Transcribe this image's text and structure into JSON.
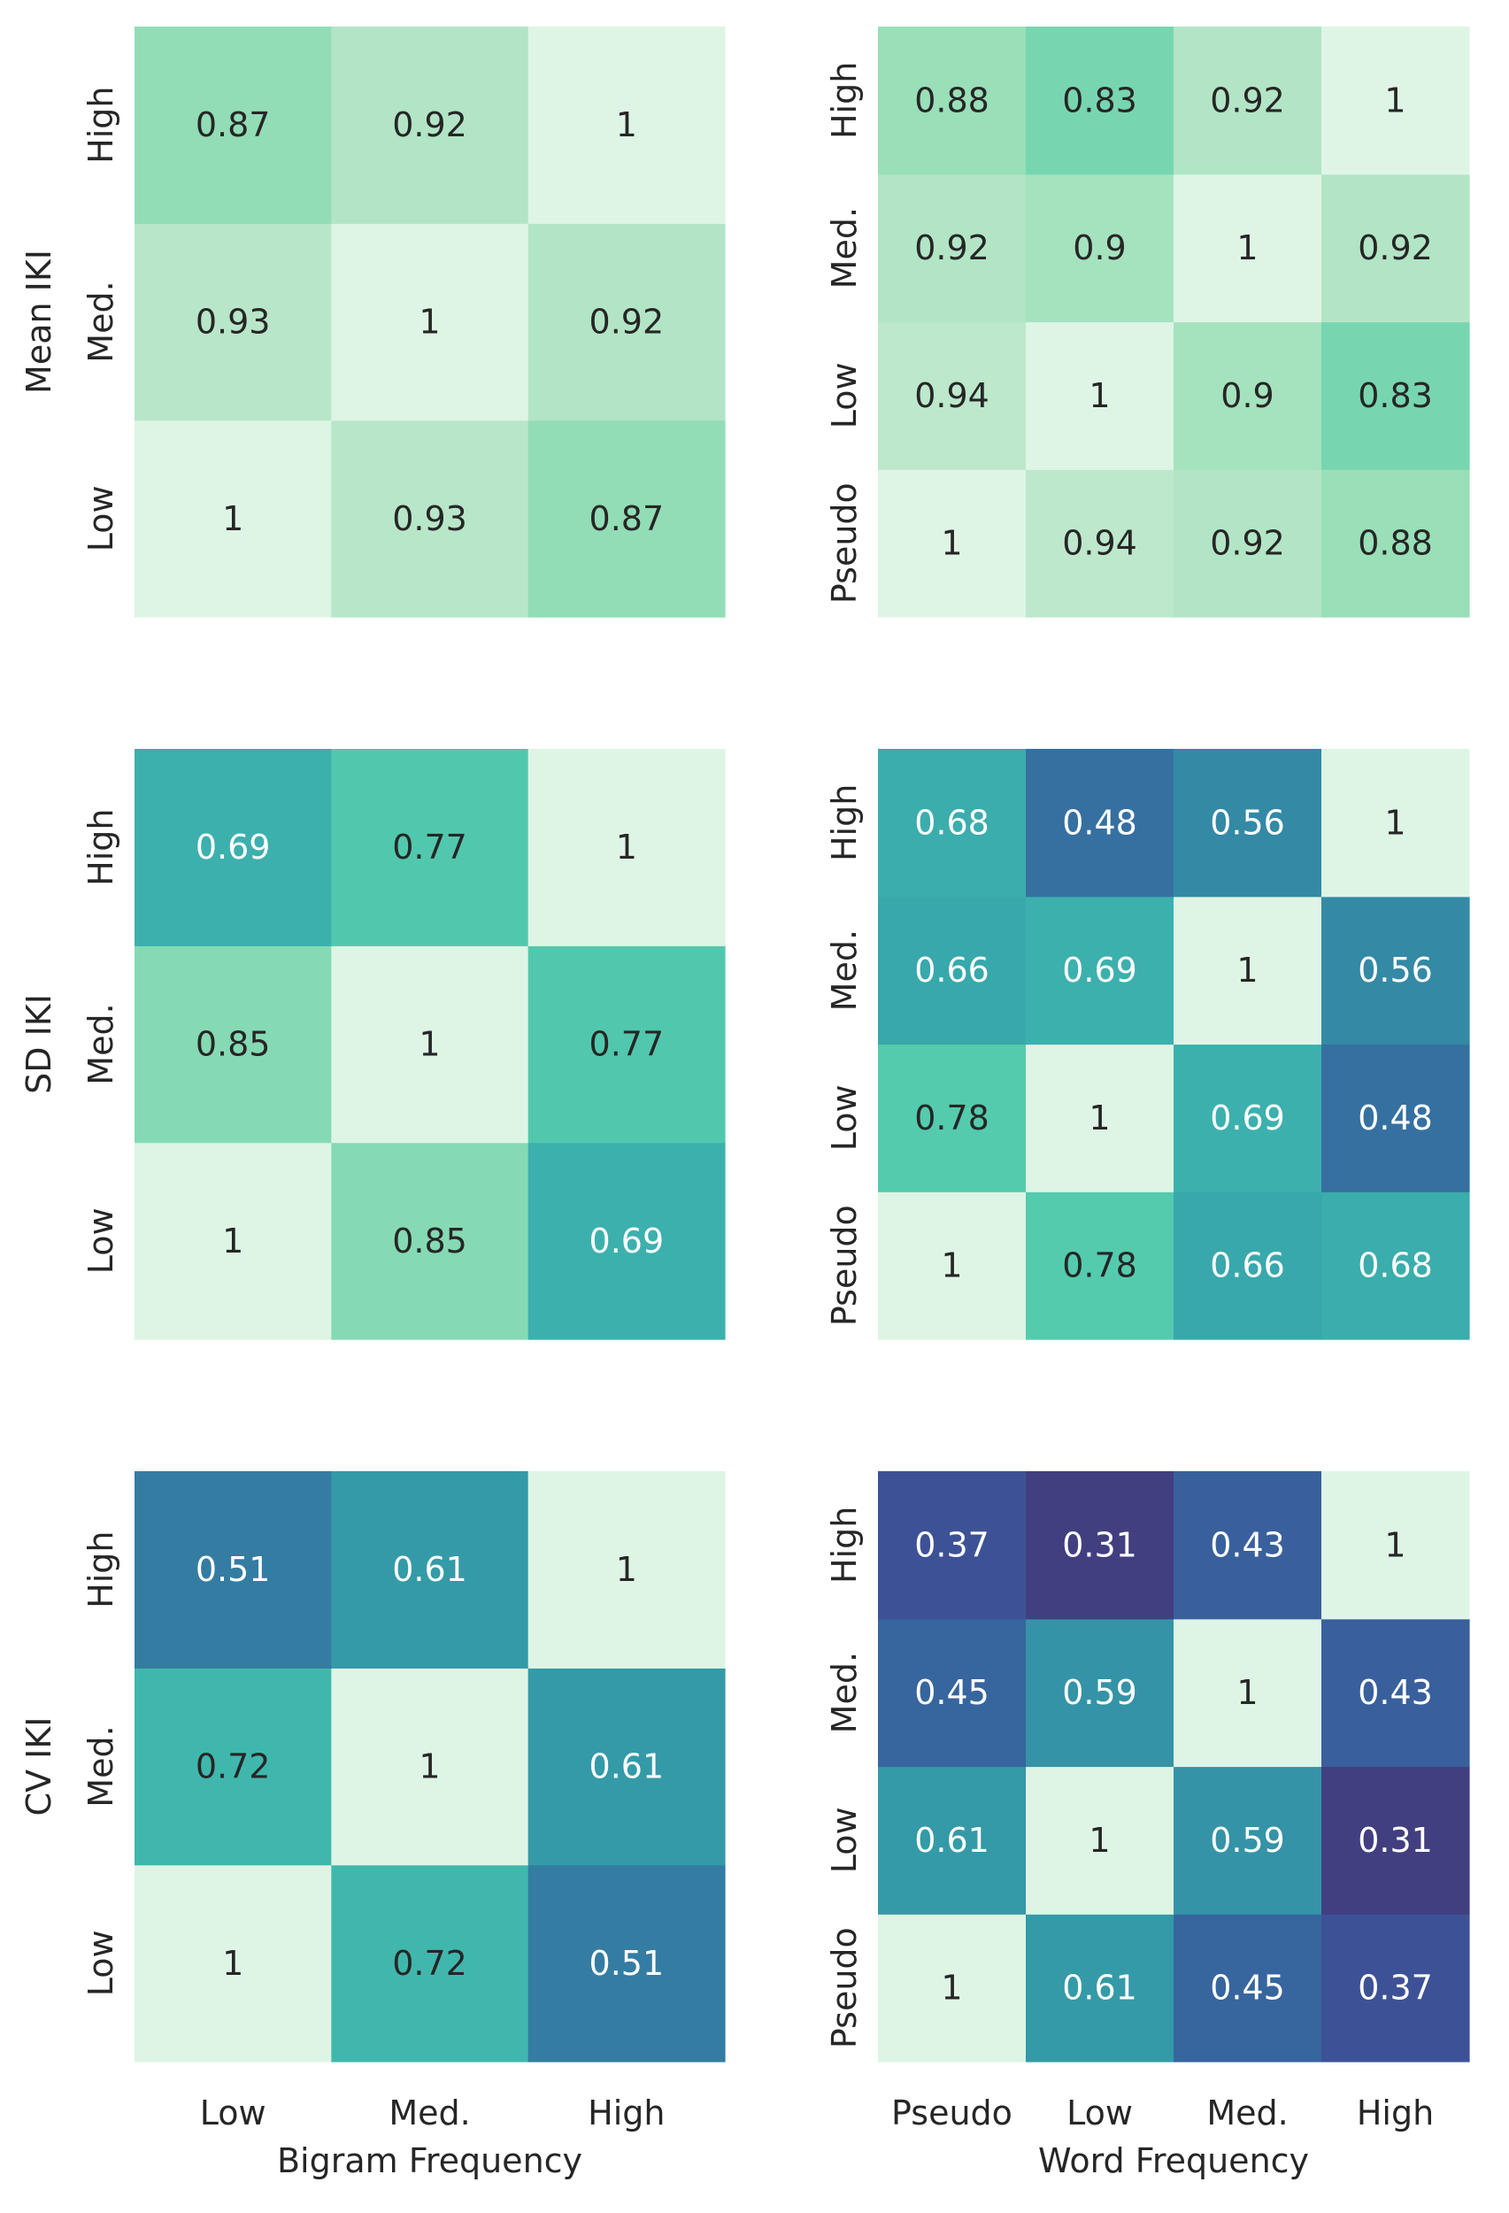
{
  "chart_data": [
    {
      "type": "heatmap",
      "ylabel": "Mean IKI",
      "xlabel": "",
      "x_categories": [
        "Low",
        "Med.",
        "High"
      ],
      "y_categories": [
        "Low",
        "Med.",
        "High"
      ],
      "show_x_ticks": false,
      "values": [
        [
          1,
          0.93,
          0.87
        ],
        [
          0.93,
          1,
          0.92
        ],
        [
          0.87,
          0.92,
          1
        ]
      ],
      "value_labels": [
        [
          "1",
          "0.93",
          "0.87"
        ],
        [
          "0.93",
          "1",
          "0.92"
        ],
        [
          "0.87",
          "0.92",
          "1"
        ]
      ]
    },
    {
      "type": "heatmap",
      "ylabel": "",
      "xlabel": "",
      "x_categories": [
        "Pseudo",
        "Low",
        "Med.",
        "High"
      ],
      "y_categories": [
        "Pseudo",
        "Low",
        "Med.",
        "High"
      ],
      "show_x_ticks": false,
      "values": [
        [
          1,
          0.94,
          0.92,
          0.88
        ],
        [
          0.94,
          1,
          0.9,
          0.83
        ],
        [
          0.92,
          0.9,
          1,
          0.92
        ],
        [
          0.88,
          0.83,
          0.92,
          1
        ]
      ],
      "value_labels": [
        [
          "1",
          "0.94",
          "0.92",
          "0.88"
        ],
        [
          "0.94",
          "1",
          "0.9",
          "0.83"
        ],
        [
          "0.92",
          "0.9",
          "1",
          "0.92"
        ],
        [
          "0.88",
          "0.83",
          "0.92",
          "1"
        ]
      ]
    },
    {
      "type": "heatmap",
      "ylabel": "SD IKI",
      "xlabel": "",
      "x_categories": [
        "Low",
        "Med.",
        "High"
      ],
      "y_categories": [
        "Low",
        "Med.",
        "High"
      ],
      "show_x_ticks": false,
      "values": [
        [
          1,
          0.85,
          0.69
        ],
        [
          0.85,
          1,
          0.77
        ],
        [
          0.69,
          0.77,
          1
        ]
      ],
      "value_labels": [
        [
          "1",
          "0.85",
          "0.69"
        ],
        [
          "0.85",
          "1",
          "0.77"
        ],
        [
          "0.69",
          "0.77",
          "1"
        ]
      ]
    },
    {
      "type": "heatmap",
      "ylabel": "",
      "xlabel": "",
      "x_categories": [
        "Pseudo",
        "Low",
        "Med.",
        "High"
      ],
      "y_categories": [
        "Pseudo",
        "Low",
        "Med.",
        "High"
      ],
      "show_x_ticks": false,
      "values": [
        [
          1,
          0.78,
          0.66,
          0.68
        ],
        [
          0.78,
          1,
          0.69,
          0.48
        ],
        [
          0.66,
          0.69,
          1,
          0.56
        ],
        [
          0.68,
          0.48,
          0.56,
          1
        ]
      ],
      "value_labels": [
        [
          "1",
          "0.78",
          "0.66",
          "0.68"
        ],
        [
          "0.78",
          "1",
          "0.69",
          "0.48"
        ],
        [
          "0.66",
          "0.69",
          "1",
          "0.56"
        ],
        [
          "0.68",
          "0.48",
          "0.56",
          "1"
        ]
      ]
    },
    {
      "type": "heatmap",
      "ylabel": "CV IKI",
      "xlabel": "Bigram Frequency",
      "x_categories": [
        "Low",
        "Med.",
        "High"
      ],
      "y_categories": [
        "Low",
        "Med.",
        "High"
      ],
      "show_x_ticks": true,
      "values": [
        [
          1,
          0.72,
          0.51
        ],
        [
          0.72,
          1,
          0.61
        ],
        [
          0.51,
          0.61,
          1
        ]
      ],
      "value_labels": [
        [
          "1",
          "0.72",
          "0.51"
        ],
        [
          "0.72",
          "1",
          "0.61"
        ],
        [
          "0.51",
          "0.61",
          "1"
        ]
      ]
    },
    {
      "type": "heatmap",
      "ylabel": "",
      "xlabel": "Word Frequency",
      "x_categories": [
        "Pseudo",
        "Low",
        "Med.",
        "High"
      ],
      "y_categories": [
        "Pseudo",
        "Low",
        "Med.",
        "High"
      ],
      "show_x_ticks": true,
      "values": [
        [
          1,
          0.61,
          0.45,
          0.37
        ],
        [
          0.61,
          1,
          0.59,
          0.31
        ],
        [
          0.45,
          0.59,
          1,
          0.43
        ],
        [
          0.37,
          0.31,
          0.43,
          1
        ]
      ],
      "value_labels": [
        [
          "1",
          "0.61",
          "0.45",
          "0.37"
        ],
        [
          "0.61",
          "1",
          "0.59",
          "0.31"
        ],
        [
          "0.45",
          "0.59",
          "1",
          "0.43"
        ],
        [
          "0.37",
          "0.31",
          "0.43",
          "1"
        ]
      ]
    }
  ],
  "colormap": {
    "name": "mako",
    "stops": [
      {
        "v": 0.31,
        "color": "#413f80"
      },
      {
        "v": 0.37,
        "color": "#3d5296"
      },
      {
        "v": 0.45,
        "color": "#37659e"
      },
      {
        "v": 0.51,
        "color": "#347ca2"
      },
      {
        "v": 0.56,
        "color": "#3489a5"
      },
      {
        "v": 0.61,
        "color": "#349aa7"
      },
      {
        "v": 0.66,
        "color": "#38a8ac"
      },
      {
        "v": 0.72,
        "color": "#40b7ad"
      },
      {
        "v": 0.78,
        "color": "#54cbad"
      },
      {
        "v": 0.83,
        "color": "#77d6b0"
      },
      {
        "v": 0.88,
        "color": "#99dfb8"
      },
      {
        "v": 0.93,
        "color": "#b8e6c8"
      },
      {
        "v": 1.0,
        "color": "#def5e5"
      }
    ],
    "text_dark": "#262626",
    "text_light": "#ffffff",
    "light_text_threshold": 0.7
  }
}
